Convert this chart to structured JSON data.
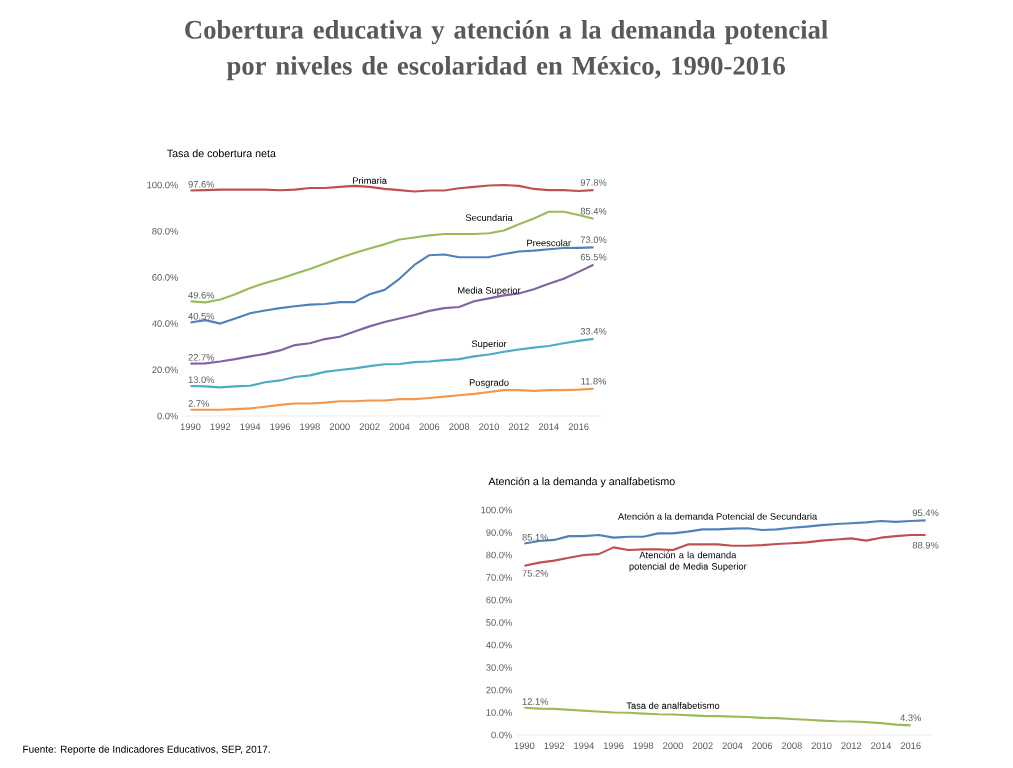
{
  "chart_data": [
    {
      "type": "line",
      "title": "Cobertura educativa y atención a la demanda potencial por niveles de escolaridad en México, 1990-2016",
      "subtitle": "Tasa de cobertura neta",
      "x": [
        1990,
        1991,
        1992,
        1993,
        1994,
        1995,
        1996,
        1997,
        1998,
        1999,
        2000,
        2001,
        2002,
        2003,
        2004,
        2005,
        2006,
        2007,
        2008,
        2009,
        2010,
        2011,
        2012,
        2013,
        2014,
        2015,
        2016,
        2017
      ],
      "xlim": [
        1989.5,
        2017.5
      ],
      "ylim": [
        0,
        100
      ],
      "xticks": [
        1990,
        1992,
        1994,
        1996,
        1998,
        2000,
        2002,
        2004,
        2006,
        2008,
        2010,
        2012,
        2014,
        2016
      ],
      "yticks": [
        {
          "value": 0,
          "label": "0.0%"
        },
        {
          "value": 20,
          "label": "20.0%"
        },
        {
          "value": 40,
          "label": "40.0%"
        },
        {
          "value": 60,
          "label": "60.0%"
        },
        {
          "value": 80,
          "label": "80.0%"
        },
        {
          "value": 100,
          "label": "100.0%"
        }
      ],
      "series": [
        {
          "name": "Primaria",
          "color": "#c0504d",
          "values": [
            97.6,
            97.8,
            98,
            98,
            98,
            98,
            97.7,
            98,
            98.7,
            98.7,
            99.2,
            99.6,
            99.2,
            98.3,
            97.8,
            97.2,
            97.6,
            97.6,
            98.6,
            99.2,
            99.8,
            100.0,
            99.6,
            98.3,
            97.8,
            97.8,
            97.4,
            97.8
          ],
          "value_labels": [
            "97.6%",
            null,
            null,
            null,
            null,
            null,
            null,
            null,
            null,
            null,
            null,
            null,
            null,
            null,
            null,
            null,
            null,
            null,
            null,
            null,
            null,
            null,
            null,
            null,
            null,
            null,
            null,
            "97.8%"
          ]
        },
        {
          "name": "Secundaria",
          "color": "#9bbb59",
          "values": [
            49.6,
            49.2,
            50.4,
            52.7,
            55.4,
            57.6,
            59.4,
            61.6,
            63.6,
            66,
            68.4,
            70.6,
            72.5,
            74.3,
            76.4,
            77.3,
            78.2,
            78.8,
            78.8,
            78.8,
            79.1,
            80.3,
            83,
            85.5,
            88.4,
            88.4,
            87,
            85.4
          ],
          "value_labels": [
            "49.6%",
            null,
            null,
            null,
            null,
            null,
            null,
            null,
            null,
            null,
            null,
            null,
            null,
            null,
            null,
            null,
            null,
            null,
            null,
            null,
            null,
            null,
            null,
            null,
            null,
            null,
            null,
            "85.4%"
          ]
        },
        {
          "name": "Preescolar",
          "color": "#4f81bd",
          "values": [
            40.5,
            41.5,
            40,
            42.2,
            44.5,
            45.7,
            46.7,
            47.5,
            48.2,
            48.5,
            49.3,
            49.3,
            52.7,
            54.6,
            59.4,
            65.4,
            69.6,
            69.9,
            68.7,
            68.7,
            68.8,
            70.1,
            71.2,
            71.6,
            72.2,
            72.7,
            72.8,
            73.0
          ],
          "value_labels": [
            "40.5%",
            null,
            null,
            null,
            null,
            null,
            null,
            null,
            null,
            null,
            null,
            null,
            null,
            null,
            null,
            null,
            null,
            null,
            null,
            null,
            null,
            null,
            null,
            null,
            null,
            null,
            null,
            "73.0%"
          ]
        },
        {
          "name": "Media Superior",
          "color": "#8064a2",
          "values": [
            22.7,
            22.8,
            23.6,
            24.6,
            25.8,
            26.9,
            28.4,
            30.7,
            31.5,
            33.3,
            34.3,
            36.6,
            38.8,
            40.7,
            42.2,
            43.7,
            45.5,
            46.7,
            47.2,
            49.7,
            50.9,
            52.2,
            53,
            54.9,
            57.2,
            59.4,
            62.4,
            65.5
          ],
          "value_labels": [
            "22.7%",
            null,
            null,
            null,
            null,
            null,
            null,
            null,
            null,
            null,
            null,
            null,
            null,
            null,
            null,
            null,
            null,
            null,
            null,
            null,
            null,
            null,
            null,
            null,
            null,
            null,
            null,
            "65.5%"
          ]
        },
        {
          "name": "Superior",
          "color": "#4bacc6",
          "values": [
            13.0,
            12.8,
            12.4,
            12.8,
            13.1,
            14.6,
            15.4,
            16.9,
            17.6,
            19.1,
            19.9,
            20.6,
            21.6,
            22.4,
            22.5,
            23.3,
            23.6,
            24.2,
            24.6,
            25.8,
            26.6,
            27.8,
            28.8,
            29.6,
            30.3,
            31.5,
            32.5,
            33.4
          ],
          "value_labels": [
            "13.0%",
            null,
            null,
            null,
            null,
            null,
            null,
            null,
            null,
            null,
            null,
            null,
            null,
            null,
            null,
            null,
            null,
            null,
            null,
            null,
            null,
            null,
            null,
            null,
            null,
            null,
            null,
            "33.4%"
          ]
        },
        {
          "name": "Posgrado",
          "color": "#f79646",
          "values": [
            2.7,
            2.7,
            2.7,
            3.0,
            3.3,
            4.0,
            4.8,
            5.4,
            5.4,
            5.8,
            6.4,
            6.4,
            6.7,
            6.7,
            7.3,
            7.3,
            7.8,
            8.4,
            9.0,
            9.6,
            10.4,
            11.2,
            11.2,
            10.9,
            11.2,
            11.2,
            11.4,
            11.8
          ],
          "value_labels": [
            "2.7%",
            null,
            null,
            null,
            null,
            null,
            null,
            null,
            null,
            null,
            null,
            null,
            null,
            null,
            null,
            null,
            null,
            null,
            null,
            null,
            null,
            null,
            null,
            null,
            null,
            null,
            null,
            "11.8%"
          ]
        }
      ]
    },
    {
      "type": "line",
      "title": "Atención a la demanda  y analfabetismo",
      "annotations": [
        "Fuente: Reporte de Indicadores Educativos, SEP, 2017."
      ],
      "x": [
        1990,
        1991,
        1992,
        1993,
        1994,
        1995,
        1996,
        1997,
        1998,
        1999,
        2000,
        2001,
        2002,
        2003,
        2004,
        2005,
        2006,
        2007,
        2008,
        2009,
        2010,
        2011,
        2012,
        2013,
        2014,
        2015,
        2016,
        2017
      ],
      "xlim": [
        1989.5,
        2017.5
      ],
      "ylim": [
        0,
        100
      ],
      "xticks": [
        1990,
        1992,
        1994,
        1996,
        1998,
        2000,
        2002,
        2004,
        2006,
        2008,
        2010,
        2012,
        2014,
        2016
      ],
      "yticks": [
        {
          "value": 0,
          "label": "0.0%"
        },
        {
          "value": 10,
          "label": "10.0%"
        },
        {
          "value": 20,
          "label": "20.0%"
        },
        {
          "value": 30,
          "label": "30.0%"
        },
        {
          "value": 40,
          "label": "40.0%"
        },
        {
          "value": 50,
          "label": "50.0%"
        },
        {
          "value": 60,
          "label": "60.0%"
        },
        {
          "value": 70,
          "label": "70.0%"
        },
        {
          "value": 80,
          "label": "80.0%"
        },
        {
          "value": 90,
          "label": "90.0%"
        },
        {
          "value": 100,
          "label": "100.0%"
        }
      ],
      "series": [
        {
          "name": "Atención a la demanda  Potencial de Secundaria",
          "color": "#4f81bd",
          "values": [
            85.1,
            86.2,
            86.7,
            88.4,
            88.4,
            88.9,
            87.7,
            88.1,
            88.1,
            89.6,
            89.6,
            90.4,
            91.4,
            91.4,
            91.7,
            91.9,
            91.1,
            91.4,
            92.1,
            92.6,
            93.3,
            93.8,
            94.1,
            94.5,
            95.1,
            94.7,
            95.1,
            95.4
          ],
          "value_labels": [
            "85.1%",
            null,
            null,
            null,
            null,
            null,
            null,
            null,
            null,
            null,
            null,
            null,
            null,
            null,
            null,
            null,
            null,
            null,
            null,
            null,
            null,
            null,
            null,
            null,
            null,
            null,
            null,
            "95.4%"
          ]
        },
        {
          "name": "Atención a la demanda  potencial de Media Superior",
          "color": "#c0504d",
          "values": [
            75.2,
            76.6,
            77.5,
            78.8,
            80,
            80.4,
            83.4,
            82.2,
            82.5,
            82.5,
            82.2,
            84.7,
            84.7,
            84.7,
            84.1,
            84.1,
            84.4,
            84.9,
            85.2,
            85.6,
            86.4,
            86.9,
            87.4,
            86.4,
            87.7,
            88.4,
            88.9,
            88.9
          ],
          "value_labels": [
            "75.2%",
            null,
            null,
            null,
            null,
            null,
            null,
            null,
            null,
            null,
            null,
            null,
            null,
            null,
            null,
            null,
            null,
            null,
            null,
            null,
            null,
            null,
            null,
            null,
            null,
            null,
            null,
            "88.9%"
          ]
        },
        {
          "name": "Tasa de analfabetismo",
          "color": "#9bbb59",
          "x": [
            1990,
            1991,
            1992,
            1993,
            1994,
            1995,
            1996,
            1997,
            1998,
            1999,
            2000,
            2001,
            2002,
            2003,
            2004,
            2005,
            2006,
            2007,
            2008,
            2009,
            2010,
            2011,
            2012,
            2013,
            2014,
            2015,
            2016
          ],
          "values": [
            12.1,
            11.7,
            11.6,
            11.2,
            10.8,
            10.4,
            10.0,
            9.9,
            9.5,
            9.2,
            9.1,
            8.8,
            8.5,
            8.4,
            8.2,
            8.0,
            7.6,
            7.5,
            7.1,
            6.8,
            6.4,
            6.1,
            6.0,
            5.7,
            5.3,
            4.6,
            4.3
          ],
          "value_labels": [
            "12.1%",
            null,
            null,
            null,
            null,
            null,
            null,
            null,
            null,
            null,
            null,
            null,
            null,
            null,
            null,
            null,
            null,
            null,
            null,
            null,
            null,
            null,
            null,
            null,
            null,
            null,
            "4.3%"
          ]
        }
      ]
    }
  ]
}
